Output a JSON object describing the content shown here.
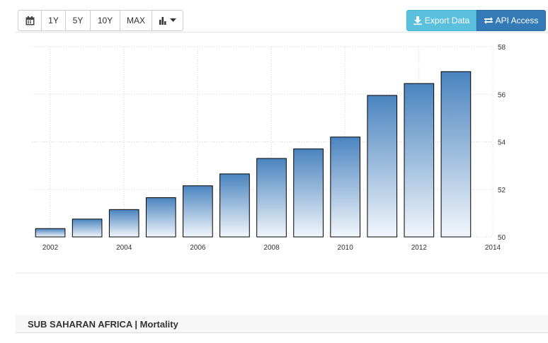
{
  "toolbar": {
    "calendar_icon": "calendar-icon",
    "ranges": [
      "1Y",
      "5Y",
      "10Y",
      "MAX"
    ],
    "chart_type_icon": "bar-chart-icon"
  },
  "actions": {
    "export_label": "Export Data",
    "export_icon": "download-icon",
    "api_label": "API Access",
    "api_icon": "exchange-icon"
  },
  "section": {
    "title": "SUB SAHARAN AFRICA | Mortality"
  },
  "colors": {
    "bar_top": "#4a84bf",
    "bar_bottom": "#f2f6fb",
    "bar_border": "#000000",
    "export_button": "#5bc0de",
    "api_button": "#337ab7"
  },
  "chart_data": {
    "type": "bar",
    "title": "",
    "xlabel": "",
    "ylabel": "",
    "categories": [
      "2002",
      "2003",
      "2004",
      "2005",
      "2006",
      "2007",
      "2008",
      "2009",
      "2010",
      "2011",
      "2012",
      "2013"
    ],
    "values": [
      50.35,
      50.75,
      51.15,
      51.65,
      52.15,
      52.65,
      53.3,
      53.7,
      54.2,
      55.95,
      56.45,
      56.95
    ],
    "ylim": [
      50,
      58
    ],
    "yticks": [
      "50",
      "52",
      "54",
      "56",
      "58"
    ],
    "xlim": [
      2001.5,
      2014
    ],
    "xticks": [
      "2002",
      "2004",
      "2006",
      "2008",
      "2010",
      "2012",
      "2014"
    ],
    "grid": true,
    "y_axis_side": "right",
    "legend": "none"
  }
}
